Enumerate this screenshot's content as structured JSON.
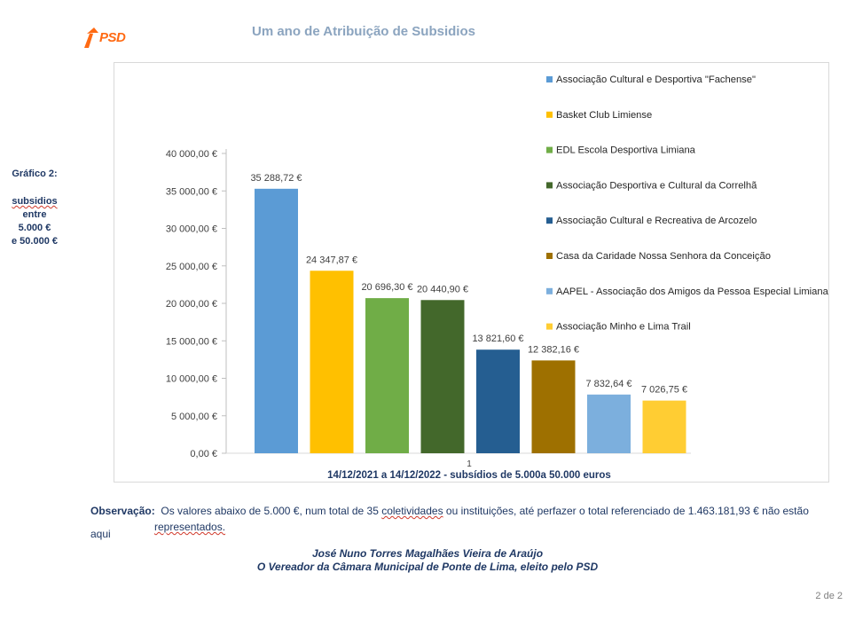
{
  "logo": {
    "text": "PSD",
    "color": "#ff6a13"
  },
  "header": {
    "title": "Um ano de Atribuição de Subsidios"
  },
  "sidebar": {
    "line1": "Gráfico 2:",
    "line2": "subsidios",
    "line3": "entre",
    "line4": "5.000 €",
    "line5": "e 50.000 €"
  },
  "chart_data": {
    "type": "bar",
    "categories": [
      "Associação Cultural e Desportiva \"Fachense\"",
      "Basket Club Limiense",
      "EDL Escola Desportiva Limiana",
      "Associação Desportiva e Cultural da Correlhã",
      "Associação Cultural e Recreativa de Arcozelo",
      "Casa da Caridade Nossa Senhora da Conceição",
      "AAPEL - Associação dos Amigos da Pessoa Especial Limiana",
      "Associação Minho e Lima Trail"
    ],
    "values": [
      35288.72,
      24347.87,
      20696.3,
      20440.9,
      13821.6,
      12382.16,
      7832.64,
      7026.75
    ],
    "value_labels": [
      "35 288,72 €",
      "24 347,87 €",
      "20 696,30 €",
      "20 440,90 €",
      "13 821,60 €",
      "12 382,16 €",
      "7 832,64 €",
      "7 026,75 €"
    ],
    "colors": [
      "#5b9bd5",
      "#ffc000",
      "#70ad47",
      "#43682b",
      "#255e91",
      "#9e7000",
      "#7cafdd",
      "#ffcd33"
    ],
    "ylim": [
      0,
      40000
    ],
    "y_ticks": [
      0,
      5000,
      10000,
      15000,
      20000,
      25000,
      30000,
      35000,
      40000
    ],
    "y_tick_labels": [
      "0,00 €",
      "5 000,00 €",
      "10 000,00 €",
      "15 000,00 €",
      "20 000,00 €",
      "25 000,00 €",
      "30 000,00 €",
      "35 000,00 €",
      "40 000,00 €"
    ],
    "x_tick_label": "1",
    "xlabel": "14/12/2021 a 14/12/2022 - subsídios de 5.000a 50.000 euros",
    "legend_position": "right",
    "grid": false
  },
  "observation": {
    "label": "Observação:",
    "text_part1": "Os valores abaixo de 5.000 €, num total de 35 ",
    "word_coletividades": "coletividades",
    "text_part2": " ou instituições, até perfazer o total referenciado de 1.463.181,93 € não estão aqui",
    "continued": "representados."
  },
  "signature": {
    "name": "José Nuno Torres Magalhães Vieira de Araújo",
    "role": "O Vereador da Câmara Municipal de Ponte de Lima, eleito pelo PSD"
  },
  "footer": {
    "page": "2 de 2"
  }
}
